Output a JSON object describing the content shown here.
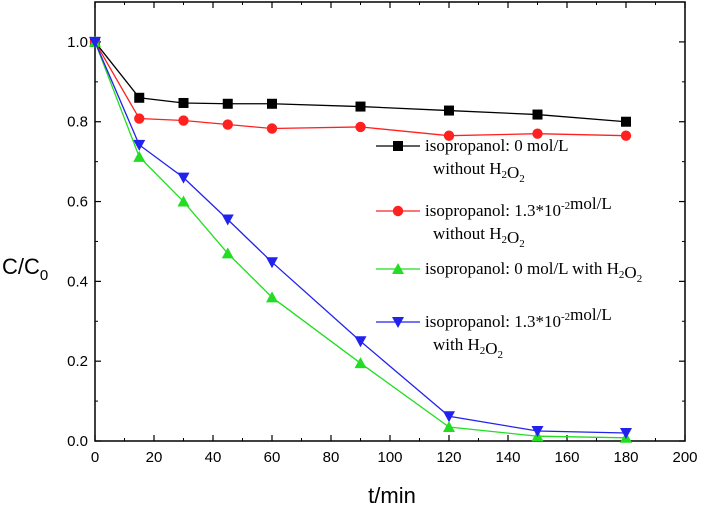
{
  "chart_data": {
    "type": "line",
    "xlabel": "t/min",
    "ylabel": {
      "main": "C/C",
      "sub": "0"
    },
    "xlim": [
      0,
      200
    ],
    "ylim": [
      0,
      1.1
    ],
    "x_ticks": [
      "0",
      "20",
      "40",
      "60",
      "80",
      "100",
      "120",
      "140",
      "160",
      "180",
      "200"
    ],
    "y_ticks": [
      "0.0",
      "0.2",
      "0.4",
      "0.6",
      "0.8",
      "1.0"
    ],
    "grid": false,
    "legend_position": "center-right",
    "series": [
      {
        "legend_lines": [
          [
            {
              "t": "isopropanol: 0 mol/L"
            }
          ],
          [
            {
              "t": "without H"
            },
            {
              "t": "2",
              "sub": true
            },
            {
              "t": "O"
            },
            {
              "t": "2",
              "sub": true
            }
          ]
        ],
        "color": "#000000",
        "marker": "square",
        "x": [
          0,
          15,
          30,
          45,
          60,
          90,
          120,
          150,
          180
        ],
        "values": [
          1.0,
          0.86,
          0.847,
          0.845,
          0.845,
          0.838,
          0.828,
          0.818,
          0.8
        ]
      },
      {
        "legend_lines": [
          [
            {
              "t": "isopropanol: 1.3*10"
            },
            {
              "t": "-2",
              "sup": true
            },
            {
              "t": "mol/L"
            }
          ],
          [
            {
              "t": "without H"
            },
            {
              "t": "2",
              "sub": true
            },
            {
              "t": "O"
            },
            {
              "t": "2",
              "sub": true
            }
          ]
        ],
        "color": "#ff2020",
        "marker": "circle",
        "x": [
          0,
          15,
          30,
          45,
          60,
          90,
          120,
          150,
          180
        ],
        "values": [
          1.0,
          0.808,
          0.803,
          0.793,
          0.783,
          0.787,
          0.765,
          0.77,
          0.765
        ]
      },
      {
        "legend_lines": [
          [
            {
              "t": "isopropanol: 0 mol/L with H"
            },
            {
              "t": "2",
              "sub": true
            },
            {
              "t": "O"
            },
            {
              "t": "2",
              "sub": true
            }
          ]
        ],
        "color": "#22dd22",
        "marker": "triangle-up",
        "x": [
          0,
          15,
          30,
          45,
          60,
          90,
          120,
          150,
          180
        ],
        "values": [
          1.0,
          0.712,
          0.6,
          0.47,
          0.36,
          0.195,
          0.035,
          0.012,
          0.008
        ]
      },
      {
        "legend_lines": [
          [
            {
              "t": "isopropanol: 1.3*10"
            },
            {
              "t": "-2",
              "sup": true
            },
            {
              "t": "mol/L"
            }
          ],
          [
            {
              "t": "with H"
            },
            {
              "t": "2",
              "sub": true
            },
            {
              "t": "O"
            },
            {
              "t": "2",
              "sub": true
            }
          ]
        ],
        "color": "#2222ee",
        "marker": "triangle-down",
        "x": [
          0,
          15,
          30,
          45,
          60,
          90,
          120,
          150,
          180
        ],
        "values": [
          1.0,
          0.742,
          0.66,
          0.555,
          0.448,
          0.25,
          0.062,
          0.025,
          0.02
        ]
      }
    ]
  }
}
